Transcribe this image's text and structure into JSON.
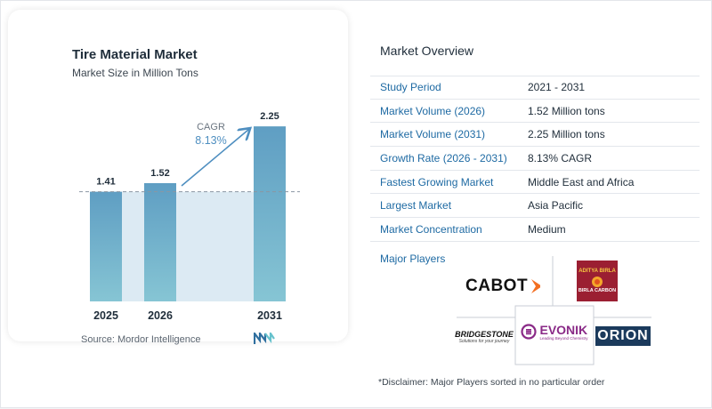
{
  "chart_data": {
    "type": "bar",
    "title": "Tire Material Market",
    "subtitle": "Market Size in Million Tons",
    "categories": [
      "2025",
      "2026",
      "2031"
    ],
    "values": [
      1.41,
      1.52,
      2.25
    ],
    "value_labels": [
      "1.41",
      "1.52",
      "2.25"
    ],
    "ylim": [
      0,
      2.4
    ],
    "annotation": {
      "label": "CAGR",
      "value": "8.13%"
    },
    "grid": false,
    "colors": {
      "bar_top": "#5f9ec3",
      "bar_bottom": "#86c5d4",
      "band": "#dceaf3",
      "arrow": "#4f8fc0"
    }
  },
  "source": "Source:  Mordor Intelligence",
  "overview": {
    "title": "Market Overview",
    "rows": [
      {
        "label": "Study Period",
        "value": "2021 - 2031"
      },
      {
        "label": "Market Volume (2026)",
        "value": "1.52 Million tons"
      },
      {
        "label": "Market Volume (2031)",
        "value": "2.25 Million tons"
      },
      {
        "label": "Growth Rate (2026 - 2031)",
        "value": "8.13% CAGR"
      },
      {
        "label": "Fastest Growing Market",
        "value": "Middle East and Africa"
      },
      {
        "label": "Largest Market",
        "value": "Asia Pacific"
      },
      {
        "label": "Market Concentration",
        "value": "Medium"
      }
    ]
  },
  "players": {
    "title": "Major Players",
    "logos": {
      "cabot": "CABOT",
      "aditya_top": "ADITYA BIRLA",
      "aditya_bottom": "BIRLA CARBON",
      "bridgestone": "BRIDGESTONE",
      "bridgestone_tag": "Solutions for your journey",
      "evonik": "EVONIK",
      "evonik_tag": "Leading Beyond Chemistry",
      "orion": "ORION"
    }
  },
  "disclaimer": "*Disclaimer: Major Players sorted in no particular order"
}
